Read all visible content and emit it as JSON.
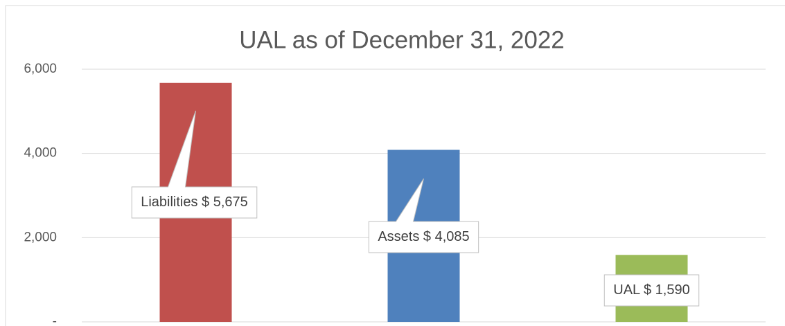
{
  "chart_data": {
    "type": "bar",
    "title": "UAL as of December 31, 2022",
    "categories": [
      "Liabilities",
      "Assets",
      "UAL"
    ],
    "values": [
      5675,
      4085,
      1590
    ],
    "value_labels": [
      "$ 5,675",
      "$ 4,085",
      "$ 1,590"
    ],
    "colors": [
      "#c0504d",
      "#4f81bd",
      "#9bbb59"
    ],
    "ylim": [
      0,
      6000
    ],
    "yticks": [
      {
        "value": 0,
        "label": "-"
      },
      {
        "value": 2000,
        "label": "2,000"
      },
      {
        "value": 4000,
        "label": "4,000"
      },
      {
        "value": 6000,
        "label": "6,000"
      }
    ],
    "grid": true
  }
}
